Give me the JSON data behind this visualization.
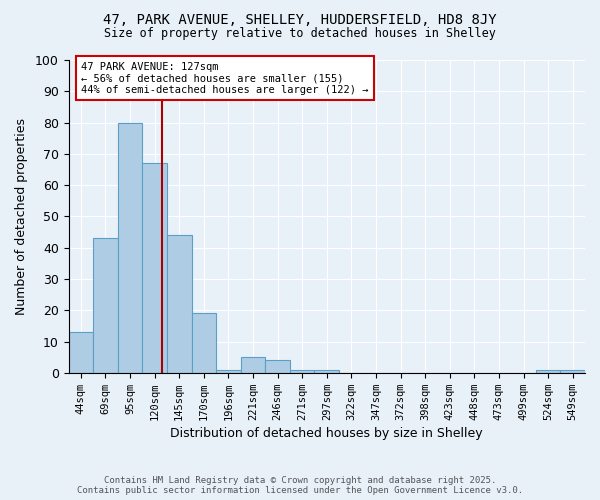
{
  "title_line1": "47, PARK AVENUE, SHELLEY, HUDDERSFIELD, HD8 8JY",
  "title_line2": "Size of property relative to detached houses in Shelley",
  "xlabel": "Distribution of detached houses by size in Shelley",
  "ylabel": "Number of detached properties",
  "bar_color": "#aecde4",
  "bar_edge_color": "#5a9fc5",
  "background_color": "#e8f0f8",
  "grid_color": "#ffffff",
  "categories": [
    "44sqm",
    "69sqm",
    "95sqm",
    "120sqm",
    "145sqm",
    "170sqm",
    "196sqm",
    "221sqm",
    "246sqm",
    "271sqm",
    "297sqm",
    "322sqm",
    "347sqm",
    "372sqm",
    "398sqm",
    "423sqm",
    "448sqm",
    "473sqm",
    "499sqm",
    "524sqm",
    "549sqm"
  ],
  "values": [
    13,
    43,
    80,
    67,
    44,
    19,
    1,
    5,
    4,
    1,
    1,
    0,
    0,
    0,
    0,
    0,
    0,
    0,
    0,
    1,
    1
  ],
  "ylim": [
    0,
    100
  ],
  "yticks": [
    0,
    10,
    20,
    30,
    40,
    50,
    60,
    70,
    80,
    90,
    100
  ],
  "vline_color": "#aa0000",
  "annotation_text": "47 PARK AVENUE: 127sqm\n← 56% of detached houses are smaller (155)\n44% of semi-detached houses are larger (122) →",
  "annotation_box_color": "#ffffff",
  "annotation_edge_color": "#cc0000",
  "footer_line1": "Contains HM Land Registry data © Crown copyright and database right 2025.",
  "footer_line2": "Contains public sector information licensed under the Open Government Licence v3.0."
}
